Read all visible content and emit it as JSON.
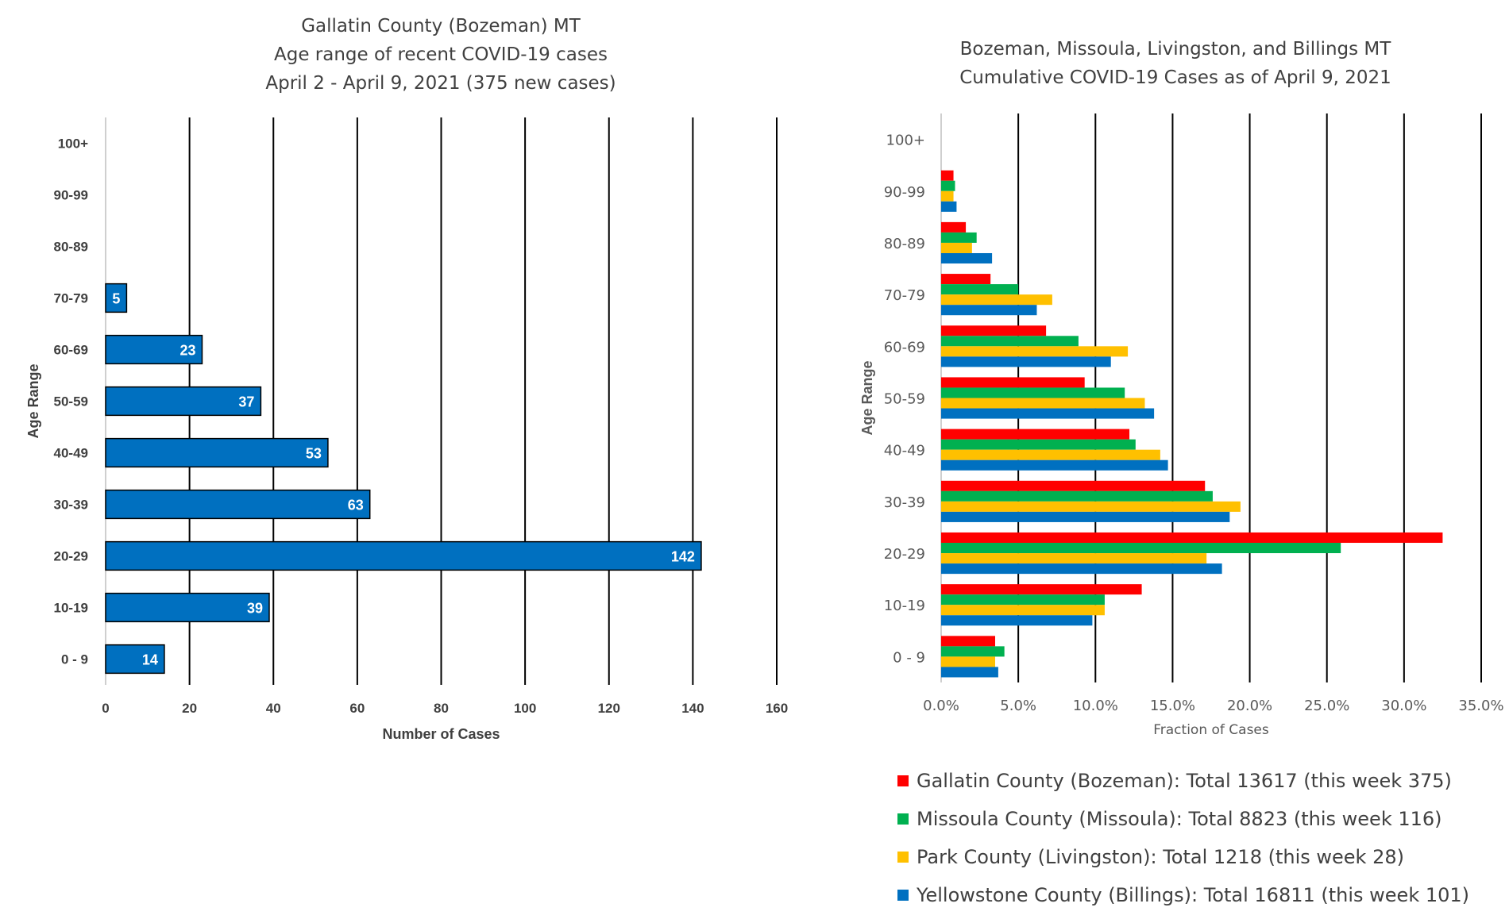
{
  "left": {
    "title_lines": [
      "Gallatin County (Bozeman) MT",
      "Age range of recent COVID-19 cases",
      "April 2 - April 9, 2021 (375 new cases)"
    ]
  },
  "right": {
    "title_lines": [
      "Bozeman, Missoula, Livingston, and Billings MT",
      "Cumulative COVID-19 Cases as of April 9, 2021"
    ],
    "legend": [
      {
        "label": "Gallatin County (Bozeman): Total 13617 (this week 375)",
        "color": "#ff0000"
      },
      {
        "label": "Missoula County (Missoula): Total 8823 (this week 116)",
        "color": "#00b050"
      },
      {
        "label": "Park County (Livingston): Total 1218 (this week 28)",
        "color": "#ffc000"
      },
      {
        "label": "Yellowstone County (Billings): Total 16811 (this week 101)",
        "color": "#0070c0"
      }
    ]
  },
  "chart_data": [
    {
      "type": "bar",
      "orientation": "horizontal",
      "title": "Gallatin County (Bozeman) MT / Age range of recent COVID-19 cases / April 2 - April 9, 2021 (375 new cases)",
      "xlabel": "Number of Cases",
      "ylabel": "Age Range",
      "xlim": [
        0,
        160
      ],
      "xticks": [
        "0",
        "20",
        "40",
        "60",
        "80",
        "100",
        "120",
        "140",
        "160"
      ],
      "categories": [
        "0 - 9",
        "10-19",
        "20-29",
        "30-39",
        "40-49",
        "50-59",
        "60-69",
        "70-79",
        "80-89",
        "90-99",
        "100+"
      ],
      "values": [
        14,
        39,
        142,
        63,
        53,
        37,
        23,
        5,
        0,
        0,
        0
      ],
      "data_labels": [
        "14",
        "39",
        "142",
        "63",
        "53",
        "37",
        "23",
        "5",
        "",
        "",
        ""
      ],
      "bar_color": "#0070c0",
      "grid": true
    },
    {
      "type": "bar",
      "orientation": "horizontal",
      "title": "Bozeman, Missoula, Livingston, and Billings MT / Cumulative COVID-19 Cases as of April 9, 2021",
      "xlabel": "Fraction of Cases",
      "ylabel": "Age Range",
      "xlim": [
        0,
        35
      ],
      "xticks": [
        "0.0%",
        "5.0%",
        "10.0%",
        "15.0%",
        "20.0%",
        "25.0%",
        "30.0%",
        "35.0%"
      ],
      "categories": [
        "0 - 9",
        "10-19",
        "20-29",
        "30-39",
        "40-49",
        "50-59",
        "60-69",
        "70-79",
        "80-89",
        "90-99",
        "100+"
      ],
      "series": [
        {
          "name": "Gallatin County (Bozeman): Total 13617 (this week 375)",
          "color": "#ff0000",
          "values": [
            3.5,
            13.0,
            32.5,
            17.1,
            12.2,
            9.3,
            6.8,
            3.2,
            1.6,
            0.8,
            0.0
          ]
        },
        {
          "name": "Missoula County (Missoula): Total 8823 (this week 116)",
          "color": "#00b050",
          "values": [
            4.1,
            10.6,
            25.9,
            17.6,
            12.6,
            11.9,
            8.9,
            5.0,
            2.3,
            0.9,
            0.0
          ]
        },
        {
          "name": "Park County (Livingston): Total 1218 (this week 28)",
          "color": "#ffc000",
          "values": [
            3.5,
            10.6,
            17.2,
            19.4,
            14.2,
            13.2,
            12.1,
            7.2,
            2.0,
            0.8,
            0.0
          ]
        },
        {
          "name": "Yellowstone County (Billings): Total 16811 (this week 101)",
          "color": "#0070c0",
          "values": [
            3.7,
            9.8,
            18.2,
            18.7,
            14.7,
            13.8,
            11.0,
            6.2,
            3.3,
            1.0,
            0.0
          ]
        }
      ],
      "legend_position": "bottom",
      "grid": true
    }
  ]
}
